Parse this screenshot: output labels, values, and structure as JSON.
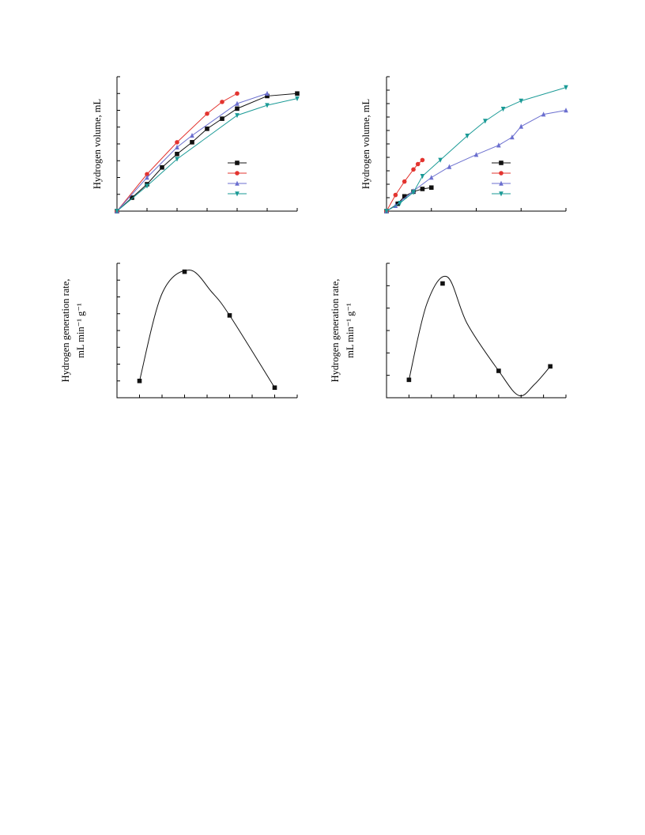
{
  "colors": {
    "black": "#111111",
    "red": "#e3342f",
    "blue": "#6b6fcf",
    "teal": "#1a9a96",
    "axis": "#000000"
  },
  "chart_data": [
    {
      "id": "top-left",
      "type": "line",
      "ylabel": "Hydrogen volume, mL",
      "xlim": [
        0,
        6
      ],
      "ylim": [
        0,
        8
      ],
      "x_ticks": [
        0,
        1,
        2,
        3,
        4,
        5,
        6
      ],
      "y_ticks": [
        0,
        1,
        2,
        3,
        4,
        5,
        6,
        7,
        8
      ],
      "legend_position": "lower-right",
      "series": [
        {
          "color": "black",
          "marker": "square",
          "x": [
            0,
            0.5,
            1.0,
            1.5,
            2.0,
            2.5,
            3.0,
            3.5,
            4.0,
            5.0,
            6.0
          ],
          "y": [
            0,
            0.8,
            1.6,
            2.6,
            3.4,
            4.1,
            4.9,
            5.5,
            6.1,
            6.85,
            7.0
          ]
        },
        {
          "color": "red",
          "marker": "circle",
          "x": [
            0,
            1.0,
            2.0,
            3.0,
            3.5,
            4.0
          ],
          "y": [
            0,
            2.2,
            4.1,
            5.8,
            6.5,
            7.0
          ]
        },
        {
          "color": "blue",
          "marker": "triangle-up",
          "x": [
            0,
            1.0,
            2.0,
            2.5,
            4.0,
            5.0
          ],
          "y": [
            0,
            2.0,
            3.8,
            4.5,
            6.4,
            7.0
          ]
        },
        {
          "color": "teal",
          "marker": "triangle-down",
          "x": [
            0,
            1.0,
            2.0,
            4.0,
            5.0,
            6.0
          ],
          "y": [
            0,
            1.5,
            3.1,
            5.7,
            6.3,
            6.7
          ]
        }
      ]
    },
    {
      "id": "top-right",
      "type": "line",
      "ylabel": "Hydrogen volume, mL",
      "xlim": [
        0,
        4
      ],
      "ylim": [
        0,
        10
      ],
      "x_ticks": [
        0,
        1,
        2,
        3,
        4
      ],
      "y_ticks": [
        0,
        1,
        2,
        3,
        4,
        5,
        6,
        7,
        8,
        9,
        10
      ],
      "legend_position": "lower-right",
      "series": [
        {
          "color": "black",
          "marker": "square",
          "x": [
            0,
            0.25,
            0.4,
            0.6,
            0.8,
            1.0
          ],
          "y": [
            0,
            0.55,
            1.1,
            1.45,
            1.65,
            1.75
          ]
        },
        {
          "color": "red",
          "marker": "circle",
          "x": [
            0,
            0.2,
            0.4,
            0.6,
            0.7,
            0.8
          ],
          "y": [
            0,
            1.2,
            2.2,
            3.1,
            3.5,
            3.8
          ]
        },
        {
          "color": "blue",
          "marker": "triangle-up",
          "x": [
            0,
            0.2,
            0.6,
            1.0,
            1.4,
            2.0,
            2.5,
            2.8,
            3.0,
            3.5,
            4.0
          ],
          "y": [
            0,
            0.4,
            1.5,
            2.5,
            3.3,
            4.2,
            4.9,
            5.5,
            6.3,
            7.2,
            7.5
          ]
        },
        {
          "color": "teal",
          "marker": "triangle-down",
          "x": [
            0,
            0.3,
            0.6,
            0.8,
            1.2,
            1.8,
            2.2,
            2.6,
            3.0,
            4.0
          ],
          "y": [
            0,
            0.6,
            1.4,
            2.6,
            3.8,
            5.6,
            6.7,
            7.6,
            8.2,
            9.2
          ]
        }
      ]
    },
    {
      "id": "bottom-left",
      "type": "line",
      "ylabel": "Hydrogen generation rate,",
      "ylabel_units": "mL min⁻¹ g⁻¹",
      "xlim": [
        0,
        8
      ],
      "ylim": [
        0,
        8
      ],
      "x_ticks": [
        0,
        1,
        2,
        3,
        4,
        5,
        6,
        7,
        8
      ],
      "y_ticks": [
        0,
        1,
        2,
        3,
        4,
        5,
        6,
        7,
        8
      ],
      "series": [
        {
          "color": "black",
          "marker": "square",
          "x": [
            1,
            3,
            5,
            7
          ],
          "y": [
            1.0,
            7.5,
            4.9,
            0.6
          ]
        }
      ]
    },
    {
      "id": "bottom-right",
      "type": "line",
      "ylabel": "Hydrogen generation rate,",
      "ylabel_units": "mL min⁻¹ g⁻¹",
      "xlim": [
        0,
        8
      ],
      "ylim": [
        0,
        6
      ],
      "x_ticks": [
        0,
        1,
        2,
        3,
        4,
        5,
        6,
        7,
        8
      ],
      "y_ticks": [
        0,
        1,
        2,
        3,
        4,
        5,
        6
      ],
      "series": [
        {
          "color": "black",
          "marker": "square",
          "x": [
            1,
            2.5,
            5,
            7.3
          ],
          "y": [
            0.8,
            5.1,
            1.2,
            1.4
          ]
        }
      ]
    }
  ]
}
